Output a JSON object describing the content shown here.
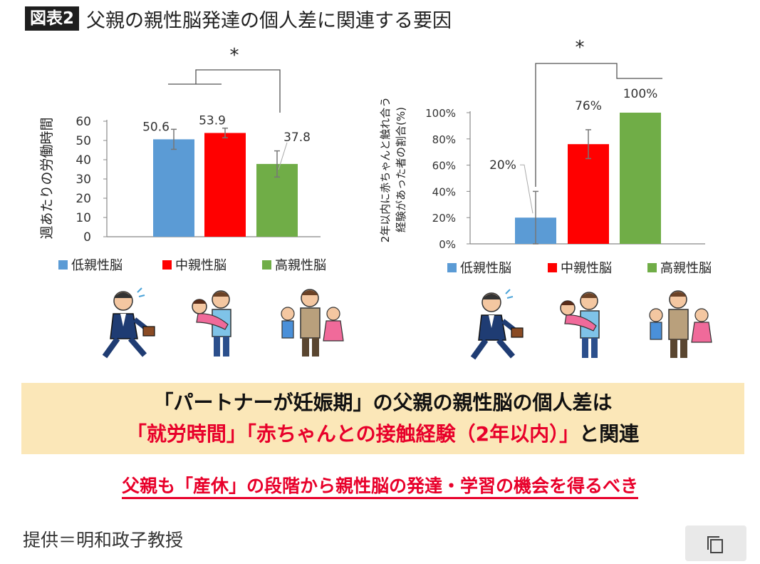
{
  "figure": {
    "badge": "図表2",
    "title": "父親の親性脳発達の個人差に関連する要因"
  },
  "legend_labels": [
    "低親性脳",
    "中親性脳",
    "高親性脳"
  ],
  "colors": {
    "low": "#5b9bd5",
    "mid": "#ff0000",
    "high": "#70ad47"
  },
  "chart_data": [
    {
      "type": "bar",
      "categories": [
        "低親性脳",
        "中親性脳",
        "高親性脳"
      ],
      "values": [
        50.6,
        53.9,
        37.8
      ],
      "value_labels": [
        "50.6",
        "53.9",
        "37.8"
      ],
      "error": [
        5.2,
        2.5,
        6.8
      ],
      "ylabel": "週あたりの労働時間",
      "ylim": [
        0,
        60
      ],
      "yticks": [
        "0",
        "10",
        "20",
        "30",
        "40",
        "50",
        "60"
      ],
      "significance": "*",
      "legend": "bottom"
    },
    {
      "type": "bar",
      "categories": [
        "低親性脳",
        "中親性脳",
        "高親性脳"
      ],
      "values": [
        20,
        76,
        100
      ],
      "value_labels": [
        "20%",
        "76%",
        "100%"
      ],
      "error": [
        20,
        11,
        0
      ],
      "ylabel_lines": [
        "2年以内に赤ちゃんと触れ合う",
        "経験があった者の割合(%)"
      ],
      "ylim": [
        0,
        100
      ],
      "yticks": [
        "0%",
        "20%",
        "40%",
        "60%",
        "80%",
        "100%"
      ],
      "significance": "*",
      "legend": "bottom"
    }
  ],
  "illustrations": [
    "busy-businessman-icon",
    "father-carrying-child-icon",
    "father-with-children-icon"
  ],
  "note": {
    "line1": "「パートナーが妊娠期」の父親の親性脳の個人差は",
    "line2_red": "「就労時間」「赤ちゃんとの接触経験（2年以内）」",
    "line2_black": "と関連"
  },
  "conclusion": "父親も「産休」の段階から親性脳の発達・学習の機会を得るべき",
  "credit": "提供＝明和政子教授"
}
